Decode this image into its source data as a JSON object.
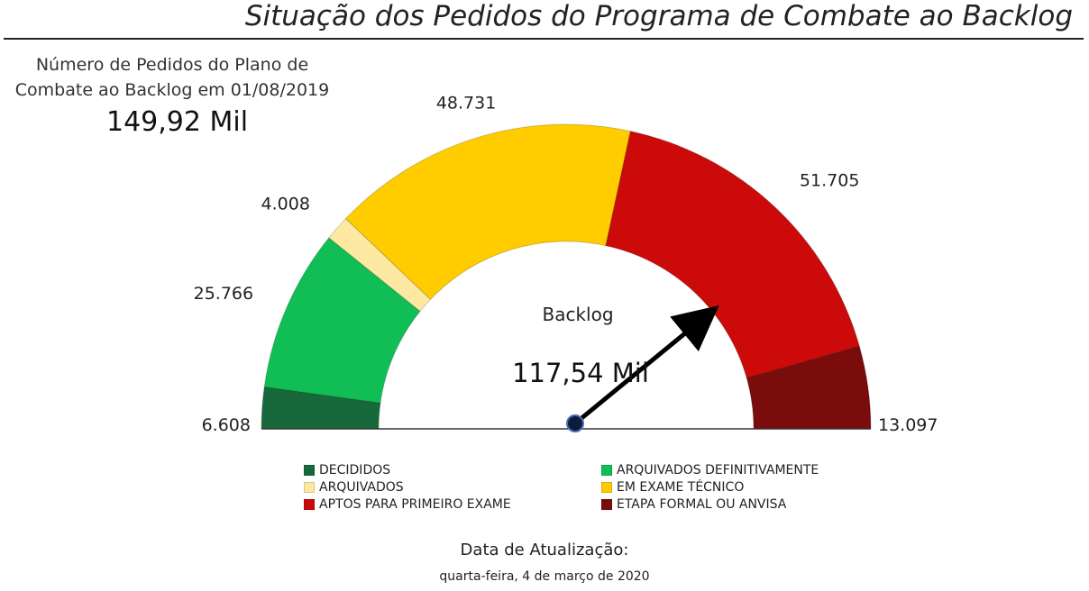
{
  "header": {
    "title": "Situação dos Pedidos do Programa de Combate ao Backlog"
  },
  "summary": {
    "label": "Número de Pedidos do Plano de Combate ao Backlog em 01/08/2019",
    "value": "149,92 Mil"
  },
  "chart_data": {
    "type": "gauge",
    "center_label": "Backlog",
    "center_value": "117,54 Mil",
    "needle_value": 117540,
    "total": 149915,
    "segments": [
      {
        "name": "DECIDIDOS",
        "value": 6608,
        "label": "6.608",
        "color": "#17683b"
      },
      {
        "name": "ARQUIVADOS DEFINITIVAMENTE",
        "value": 25766,
        "label": "25.766",
        "color": "#10be55"
      },
      {
        "name": "ARQUIVADOS",
        "value": 4008,
        "label": "4.008",
        "color": "#fde9a1"
      },
      {
        "name": "EM EXAME TÉCNICO",
        "value": 48731,
        "label": "48.731",
        "color": "#ffcc00"
      },
      {
        "name": "APTOS PARA PRIMEIRO EXAME",
        "value": 51705,
        "label": "51.705",
        "color": "#cc0a0a"
      },
      {
        "name": "ETAPA FORMAL OU ANVISA",
        "value": 13097,
        "label": "13.097",
        "color": "#7a0c0c"
      }
    ]
  },
  "legend": {
    "items": [
      {
        "label": "DECIDIDOS",
        "color": "#17683b"
      },
      {
        "label": "ARQUIVADOS DEFINITIVAMENTE",
        "color": "#10be55"
      },
      {
        "label": "ARQUIVADOS",
        "color": "#fde9a1"
      },
      {
        "label": "EM EXAME TÉCNICO",
        "color": "#ffcc00"
      },
      {
        "label": "APTOS PARA PRIMEIRO EXAME",
        "color": "#cc0a0a"
      },
      {
        "label": "ETAPA FORMAL OU ANVISA",
        "color": "#7a0c0c"
      }
    ]
  },
  "footer": {
    "update_label": "Data de Atualização:",
    "update_date": "quarta-feira, 4 de março de 2020"
  }
}
